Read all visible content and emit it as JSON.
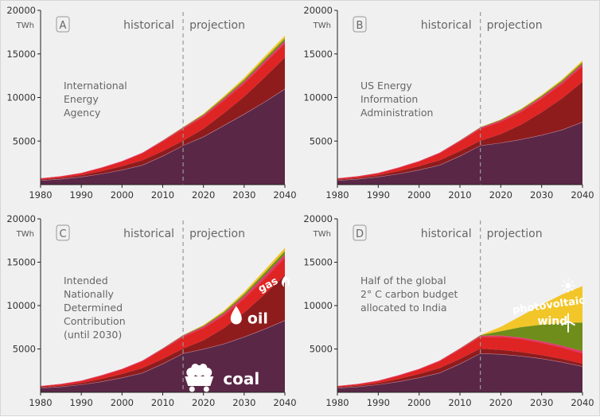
{
  "chart_data": [
    {
      "type": "area",
      "panel_label": "A",
      "source_text": [
        "International",
        "Energy",
        "Agency"
      ],
      "period_labels": {
        "historical": "historical",
        "projection": "projection"
      },
      "y_unit": "TWh",
      "xlim": [
        1980,
        2040
      ],
      "ylim": [
        0,
        20000
      ],
      "x_ticks": [
        "1980",
        "1990",
        "2000",
        "2010",
        "2020",
        "2030",
        "2040"
      ],
      "y_ticks": [
        "5000",
        "10000",
        "15000",
        "20000"
      ],
      "divider_year": 2015,
      "x": [
        1980,
        1985,
        1990,
        1995,
        2000,
        2005,
        2010,
        2015,
        2020,
        2025,
        2030,
        2035,
        2040
      ],
      "series": [
        {
          "values": [
            500,
            650,
            900,
            1250,
            1700,
            2250,
            3300,
            4500,
            5500,
            6800,
            8100,
            9500,
            11000
          ]
        },
        {
          "values": [
            80,
            120,
            180,
            300,
            420,
            550,
            550,
            550,
            900,
            1400,
            2000,
            2800,
            3600
          ]
        },
        {
          "values": [
            120,
            160,
            220,
            370,
            520,
            780,
            1100,
            1350,
            1400,
            1450,
            1500,
            1600,
            1600
          ]
        },
        {
          "values": [
            30,
            40,
            50,
            60,
            70,
            80,
            110,
            140,
            160,
            200,
            240,
            280,
            300
          ]
        },
        {
          "values": [
            0,
            0,
            0,
            0,
            0,
            0,
            20,
            50,
            100,
            150,
            200,
            250,
            300
          ]
        },
        {
          "values": [
            0,
            0,
            0,
            0,
            0,
            0,
            0,
            20,
            80,
            150,
            220,
            270,
            300
          ]
        }
      ]
    },
    {
      "type": "area",
      "panel_label": "B",
      "source_text": [
        "US Energy",
        "Information",
        "Administration"
      ],
      "period_labels": {
        "historical": "historical",
        "projection": "projection"
      },
      "y_unit": "TWh",
      "xlim": [
        1980,
        2040
      ],
      "ylim": [
        0,
        20000
      ],
      "x_ticks": [
        "1980",
        "1990",
        "2000",
        "2010",
        "2020",
        "2030",
        "2040"
      ],
      "y_ticks": [
        "5000",
        "10000",
        "15000",
        "20000"
      ],
      "divider_year": 2015,
      "x": [
        1980,
        1985,
        1990,
        1995,
        2000,
        2005,
        2010,
        2015,
        2020,
        2025,
        2030,
        2035,
        2040
      ],
      "series": [
        {
          "values": [
            500,
            650,
            900,
            1250,
            1700,
            2250,
            3300,
            4500,
            4800,
            5200,
            5700,
            6300,
            7200
          ]
        },
        {
          "values": [
            80,
            120,
            180,
            300,
            420,
            550,
            550,
            550,
            1000,
            1700,
            2600,
            3600,
            4600
          ]
        },
        {
          "values": [
            120,
            160,
            220,
            370,
            520,
            780,
            1100,
            1350,
            1400,
            1450,
            1550,
            1650,
            1800
          ]
        },
        {
          "values": [
            30,
            40,
            50,
            60,
            70,
            80,
            110,
            140,
            160,
            180,
            200,
            220,
            250
          ]
        },
        {
          "values": [
            0,
            0,
            0,
            0,
            0,
            0,
            20,
            50,
            80,
            110,
            140,
            170,
            200
          ]
        },
        {
          "values": [
            0,
            0,
            0,
            0,
            0,
            0,
            0,
            20,
            50,
            80,
            110,
            150,
            200
          ]
        }
      ]
    },
    {
      "type": "area",
      "panel_label": "C",
      "source_text": [
        "Intended",
        "Nationally",
        "Determined",
        "Contribution",
        "(until 2030)"
      ],
      "period_labels": {
        "historical": "historical",
        "projection": "projection"
      },
      "y_unit": "TWh",
      "xlim": [
        1980,
        2040
      ],
      "ylim": [
        0,
        20000
      ],
      "x_ticks": [
        "1980",
        "1990",
        "2000",
        "2010",
        "2020",
        "2030",
        "2040"
      ],
      "y_ticks": [
        "5000",
        "10000",
        "15000",
        "20000"
      ],
      "divider_year": 2015,
      "annotations": {
        "coal": "coal",
        "oil": "oil",
        "gas": "gas"
      },
      "x": [
        1980,
        1985,
        1990,
        1995,
        2000,
        2005,
        2010,
        2015,
        2020,
        2025,
        2030,
        2035,
        2040
      ],
      "series": [
        {
          "values": [
            500,
            650,
            900,
            1250,
            1700,
            2250,
            3300,
            4500,
            5000,
            5600,
            6400,
            7300,
            8300
          ]
        },
        {
          "values": [
            80,
            120,
            180,
            300,
            420,
            550,
            550,
            550,
            1000,
            1800,
            2800,
            4000,
            5200
          ]
        },
        {
          "values": [
            120,
            160,
            220,
            370,
            520,
            780,
            1100,
            1350,
            1400,
            1450,
            1600,
            1800,
            2000
          ]
        },
        {
          "values": [
            30,
            40,
            50,
            60,
            70,
            80,
            110,
            140,
            180,
            230,
            290,
            350,
            400
          ]
        },
        {
          "values": [
            0,
            0,
            0,
            0,
            0,
            0,
            20,
            50,
            100,
            170,
            250,
            330,
            400
          ]
        },
        {
          "values": [
            0,
            0,
            0,
            0,
            0,
            0,
            0,
            20,
            80,
            150,
            230,
            300,
            350
          ]
        }
      ]
    },
    {
      "type": "area",
      "panel_label": "D",
      "source_text": [
        "Half of the global",
        "2° C carbon budget",
        "allocated to India"
      ],
      "period_labels": {
        "historical": "historical",
        "projection": "projection"
      },
      "y_unit": "TWh",
      "xlim": [
        1980,
        2040
      ],
      "ylim": [
        0,
        20000
      ],
      "x_ticks": [
        "1980",
        "1990",
        "2000",
        "2010",
        "2020",
        "2030",
        "2040"
      ],
      "y_ticks": [
        "5000",
        "10000",
        "15000",
        "20000"
      ],
      "divider_year": 2015,
      "annotations": {
        "wind": "wind",
        "photovoltaic": "photovoltaic"
      },
      "x": [
        1980,
        1985,
        1990,
        1995,
        2000,
        2005,
        2010,
        2015,
        2020,
        2025,
        2030,
        2035,
        2040
      ],
      "series": [
        {
          "values": [
            500,
            650,
            900,
            1250,
            1700,
            2250,
            3300,
            4500,
            4400,
            4200,
            3900,
            3500,
            3000
          ]
        },
        {
          "values": [
            80,
            120,
            180,
            300,
            420,
            550,
            550,
            550,
            500,
            450,
            400,
            350,
            300
          ]
        },
        {
          "values": [
            120,
            160,
            220,
            370,
            520,
            780,
            1100,
            1350,
            1500,
            1500,
            1400,
            1300,
            1200
          ]
        },
        {
          "values": [
            30,
            40,
            50,
            60,
            70,
            80,
            110,
            140,
            150,
            170,
            200,
            230,
            250
          ]
        },
        {
          "values": [
            0,
            0,
            0,
            0,
            0,
            0,
            20,
            50,
            500,
            1200,
            1900,
            2600,
            3300
          ]
        },
        {
          "values": [
            0,
            0,
            0,
            0,
            0,
            0,
            0,
            20,
            500,
            1300,
            2300,
            3300,
            4200
          ]
        }
      ]
    }
  ],
  "colors": {
    "coal": "#5b2747",
    "oil": "#8e1c1d",
    "gas": "#df2424",
    "other": "#e0356a",
    "wind": "#6f8d1a",
    "photovoltaic": "#f2c628",
    "axis": "#222222",
    "divider": "#999999",
    "label_box": "#999999"
  }
}
